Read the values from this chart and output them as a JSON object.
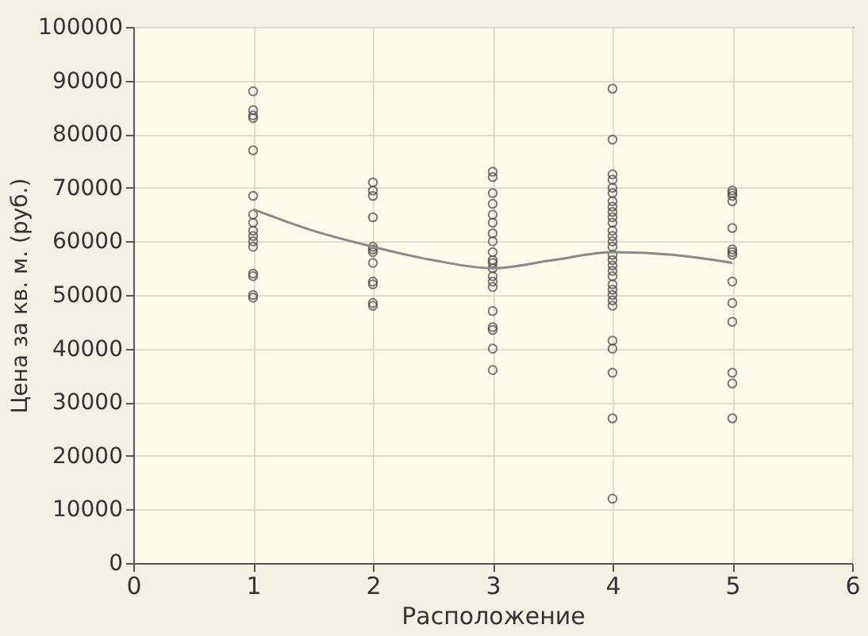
{
  "chart_data": {
    "type": "scatter",
    "xlabel": "Расположение",
    "ylabel": "Цена за кв. м. (руб.)",
    "xlim": [
      0,
      6
    ],
    "xticks": [
      0,
      1,
      2,
      3,
      4,
      5,
      6
    ],
    "ylim": [
      0,
      100000
    ],
    "yticks": [
      0,
      10000,
      20000,
      30000,
      40000,
      50000,
      60000,
      70000,
      80000,
      90000,
      100000
    ],
    "grid": true,
    "marker": "circle",
    "series": [
      {
        "color": "#444444",
        "x": [
          1,
          1,
          1,
          1,
          1,
          1,
          1,
          1,
          1,
          1,
          1,
          1,
          1,
          1,
          1,
          1,
          2,
          2,
          2,
          2,
          2,
          2,
          2,
          2,
          2,
          2,
          2,
          2,
          3,
          3,
          3,
          3,
          3,
          3,
          3,
          3,
          3,
          3,
          3,
          3,
          3,
          3,
          3,
          3,
          3,
          3,
          3,
          3,
          4,
          4,
          4,
          4,
          4,
          4,
          4,
          4,
          4,
          4,
          4,
          4,
          4,
          4,
          4,
          4,
          4,
          4,
          4,
          4,
          4,
          4,
          4,
          4,
          4,
          4,
          4,
          4,
          4,
          4,
          5,
          5,
          5,
          5,
          5,
          5,
          5,
          5,
          5,
          5,
          5,
          5,
          5,
          5
        ],
        "values": [
          88000,
          84500,
          83500,
          83000,
          77000,
          68500,
          65000,
          63500,
          62000,
          61000,
          60000,
          59000,
          54000,
          53500,
          50000,
          49500,
          71000,
          69500,
          68500,
          64500,
          59000,
          58500,
          58000,
          56000,
          52500,
          52000,
          48500,
          48000,
          73000,
          72000,
          69000,
          67000,
          65000,
          63500,
          61500,
          60000,
          58000,
          56500,
          56000,
          55000,
          53500,
          52500,
          51500,
          47000,
          44000,
          43500,
          40000,
          36000,
          88500,
          79000,
          72500,
          71500,
          70000,
          69000,
          67500,
          66500,
          65500,
          64500,
          63500,
          62000,
          61000,
          60000,
          59000,
          57500,
          56500,
          55500,
          54500,
          53500,
          52000,
          51000,
          50000,
          49000,
          48000,
          41500,
          40000,
          35500,
          27000,
          12000,
          69500,
          69000,
          68500,
          67500,
          62500,
          58500,
          58000,
          57500,
          52500,
          48500,
          45000,
          35500,
          33500,
          27000
        ]
      },
      {
        "type": "line",
        "color": "#8a8a8a",
        "marker": "none",
        "x": [
          1,
          1.5,
          2,
          2.5,
          3,
          3.5,
          4,
          4.5,
          5
        ],
        "values": [
          66000,
          62000,
          59000,
          56500,
          55000,
          56500,
          58000,
          57500,
          56000
        ]
      }
    ]
  }
}
